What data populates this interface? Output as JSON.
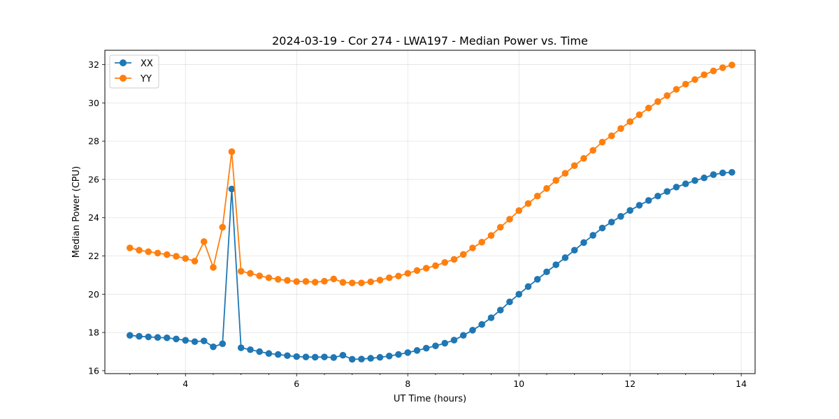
{
  "chart_data": {
    "type": "line",
    "title": "2024-03-19 - Cor 274 - LWA197 - Median Power vs. Time",
    "xlabel": "UT Time (hours)",
    "ylabel": "Median Power (CPU)",
    "xlim": [
      2.55,
      14.25
    ],
    "ylim": [
      15.85,
      32.75
    ],
    "xticks": [
      4,
      6,
      8,
      10,
      12,
      14
    ],
    "yticks": [
      16,
      18,
      20,
      22,
      24,
      26,
      28,
      30,
      32
    ],
    "grid": true,
    "legend": "top-left",
    "x": [
      3.0,
      3.167,
      3.333,
      3.5,
      3.667,
      3.833,
      4.0,
      4.167,
      4.333,
      4.5,
      4.667,
      4.833,
      5.0,
      5.167,
      5.333,
      5.5,
      5.667,
      5.833,
      6.0,
      6.167,
      6.333,
      6.5,
      6.667,
      6.833,
      7.0,
      7.167,
      7.333,
      7.5,
      7.667,
      7.833,
      8.0,
      8.167,
      8.333,
      8.5,
      8.667,
      8.833,
      9.0,
      9.167,
      9.333,
      9.5,
      9.667,
      9.833,
      10.0,
      10.167,
      10.333,
      10.5,
      10.667,
      10.833,
      11.0,
      11.167,
      11.333,
      11.5,
      11.667,
      11.833,
      12.0,
      12.167,
      12.333,
      12.5,
      12.667,
      12.833,
      13.0,
      13.167,
      13.333,
      13.5,
      13.667,
      13.833
    ],
    "series": [
      {
        "name": "XX",
        "color": "#1f77b4",
        "values": [
          17.85,
          17.8,
          17.77,
          17.74,
          17.72,
          17.66,
          17.59,
          17.52,
          17.56,
          17.25,
          17.41,
          25.5,
          17.2,
          17.1,
          17.0,
          16.9,
          16.85,
          16.79,
          16.74,
          16.72,
          16.71,
          16.72,
          16.69,
          16.81,
          16.6,
          16.61,
          16.65,
          16.7,
          16.77,
          16.85,
          16.95,
          17.06,
          17.18,
          17.3,
          17.44,
          17.6,
          17.85,
          18.12,
          18.42,
          18.77,
          19.17,
          19.6,
          20.0,
          20.4,
          20.78,
          21.17,
          21.54,
          21.91,
          22.3,
          22.7,
          23.08,
          23.46,
          23.77,
          24.07,
          24.38,
          24.65,
          24.9,
          25.13,
          25.37,
          25.6,
          25.77,
          25.94,
          26.08,
          26.25,
          26.34,
          26.37
        ]
      },
      {
        "name": "YY",
        "color": "#ff7f0e",
        "values": [
          22.42,
          22.3,
          22.22,
          22.15,
          22.07,
          21.98,
          21.87,
          21.73,
          22.75,
          21.4,
          23.5,
          27.45,
          21.2,
          21.09,
          20.96,
          20.86,
          20.78,
          20.72,
          20.66,
          20.67,
          20.63,
          20.68,
          20.8,
          20.62,
          20.59,
          20.59,
          20.65,
          20.74,
          20.86,
          20.95,
          21.09,
          21.24,
          21.36,
          21.49,
          21.66,
          21.82,
          22.08,
          22.42,
          22.72,
          23.07,
          23.5,
          23.92,
          24.37,
          24.74,
          25.13,
          25.53,
          25.95,
          26.32,
          26.72,
          27.1,
          27.52,
          27.95,
          28.28,
          28.66,
          29.02,
          29.38,
          29.73,
          30.07,
          30.38,
          30.71,
          30.98,
          31.22,
          31.47,
          31.67,
          31.84,
          31.98
        ]
      }
    ]
  }
}
